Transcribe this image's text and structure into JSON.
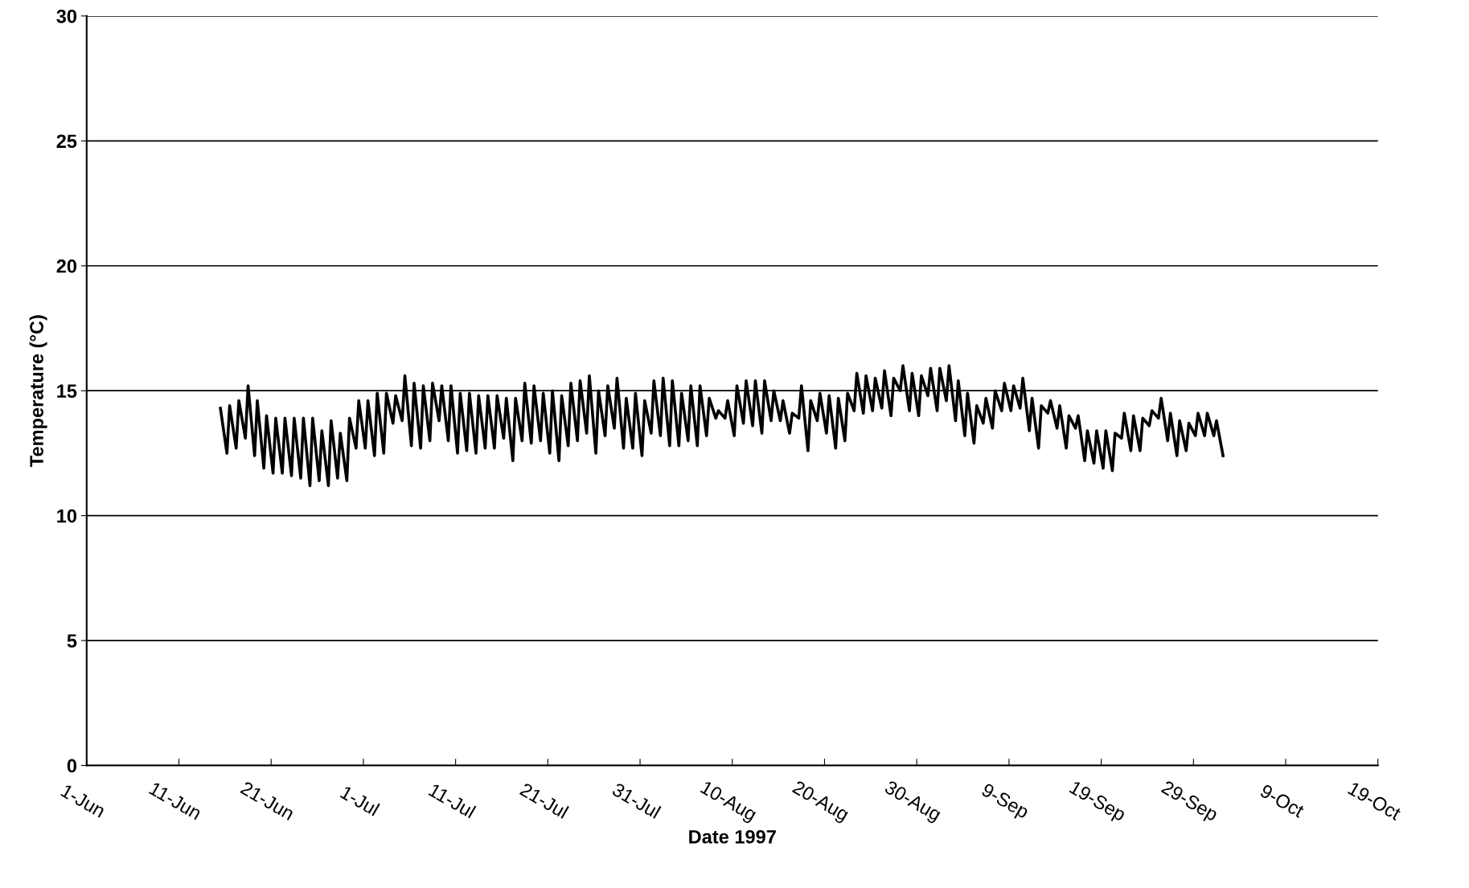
{
  "chart_data": {
    "type": "line",
    "xlabel": "Date 1997",
    "ylabel": "Temperature (°C)",
    "xlim": [
      "1997-06-01",
      "1997-10-19"
    ],
    "xticks": [
      {
        "value": "1997-06-01",
        "label": "1-Jun"
      },
      {
        "value": "1997-06-11",
        "label": "11-Jun"
      },
      {
        "value": "1997-06-21",
        "label": "21-Jun"
      },
      {
        "value": "1997-07-01",
        "label": "1-Jul"
      },
      {
        "value": "1997-07-11",
        "label": "11-Jul"
      },
      {
        "value": "1997-07-21",
        "label": "21-Jul"
      },
      {
        "value": "1997-07-31",
        "label": "31-Jul"
      },
      {
        "value": "1997-08-10",
        "label": "10-Aug"
      },
      {
        "value": "1997-08-20",
        "label": "20-Aug"
      },
      {
        "value": "1997-08-30",
        "label": "30-Aug"
      },
      {
        "value": "1997-09-09",
        "label": "9-Sep"
      },
      {
        "value": "1997-09-19",
        "label": "19-Sep"
      },
      {
        "value": "1997-09-29",
        "label": "29-Sep"
      },
      {
        "value": "1997-10-09",
        "label": "9-Oct"
      },
      {
        "value": "1997-10-19",
        "label": "19-Oct"
      }
    ],
    "ylim": [
      0,
      30
    ],
    "yticks": [
      0,
      5,
      10,
      15,
      20,
      25,
      30
    ],
    "grid": "y",
    "marker": "none",
    "line_style": "solid",
    "series": [
      {
        "color": "#000000",
        "x": [
          "1997-06-15T12:00",
          "1997-06-16T05:00",
          "1997-06-16T12:00",
          "1997-06-17T05:00",
          "1997-06-17T12:00",
          "1997-06-18T05:00",
          "1997-06-18T12:00",
          "1997-06-19T05:00",
          "1997-06-19T12:00",
          "1997-06-20T05:00",
          "1997-06-20T12:00",
          "1997-06-21T05:00",
          "1997-06-21T12:00",
          "1997-06-22T05:00",
          "1997-06-22T12:00",
          "1997-06-23T05:00",
          "1997-06-23T12:00",
          "1997-06-24T05:00",
          "1997-06-24T12:00",
          "1997-06-25T05:00",
          "1997-06-25T12:00",
          "1997-06-26T05:00",
          "1997-06-26T12:00",
          "1997-06-27T05:00",
          "1997-06-27T12:00",
          "1997-06-28T05:00",
          "1997-06-28T12:00",
          "1997-06-29T05:00",
          "1997-06-29T12:00",
          "1997-06-30T05:00",
          "1997-06-30T12:00",
          "1997-07-01T05:00",
          "1997-07-01T12:00",
          "1997-07-02T05:00",
          "1997-07-02T12:00",
          "1997-07-03T05:00",
          "1997-07-03T12:00",
          "1997-07-04T05:00",
          "1997-07-04T12:00",
          "1997-07-05T05:00",
          "1997-07-05T12:00",
          "1997-07-06T05:00",
          "1997-07-06T12:00",
          "1997-07-07T05:00",
          "1997-07-07T12:00",
          "1997-07-08T05:00",
          "1997-07-08T12:00",
          "1997-07-09T05:00",
          "1997-07-09T12:00",
          "1997-07-10T05:00",
          "1997-07-10T12:00",
          "1997-07-11T05:00",
          "1997-07-11T12:00",
          "1997-07-12T05:00",
          "1997-07-12T12:00",
          "1997-07-13T05:00",
          "1997-07-13T12:00",
          "1997-07-14T05:00",
          "1997-07-14T12:00",
          "1997-07-15T05:00",
          "1997-07-15T12:00",
          "1997-07-16T05:00",
          "1997-07-16T12:00",
          "1997-07-17T05:00",
          "1997-07-17T12:00",
          "1997-07-18T05:00",
          "1997-07-18T12:00",
          "1997-07-19T05:00",
          "1997-07-19T12:00",
          "1997-07-20T05:00",
          "1997-07-20T12:00",
          "1997-07-21T05:00",
          "1997-07-21T12:00",
          "1997-07-22T05:00",
          "1997-07-22T12:00",
          "1997-07-23T05:00",
          "1997-07-23T12:00",
          "1997-07-24T05:00",
          "1997-07-24T12:00",
          "1997-07-25T05:00",
          "1997-07-25T12:00",
          "1997-07-26T05:00",
          "1997-07-26T12:00",
          "1997-07-27T05:00",
          "1997-07-27T12:00",
          "1997-07-28T05:00",
          "1997-07-28T12:00",
          "1997-07-29T05:00",
          "1997-07-29T12:00",
          "1997-07-30T05:00",
          "1997-07-30T12:00",
          "1997-07-31T05:00",
          "1997-07-31T12:00",
          "1997-08-01T05:00",
          "1997-08-01T12:00",
          "1997-08-02T05:00",
          "1997-08-02T12:00",
          "1997-08-03T05:00",
          "1997-08-03T12:00",
          "1997-08-04T05:00",
          "1997-08-04T12:00",
          "1997-08-05T05:00",
          "1997-08-05T12:00",
          "1997-08-06T05:00",
          "1997-08-06T12:00",
          "1997-08-07T05:00",
          "1997-08-07T12:00",
          "1997-08-08T05:00",
          "1997-08-08T12:00",
          "1997-08-09T05:00",
          "1997-08-09T12:00",
          "1997-08-10T05:00",
          "1997-08-10T12:00",
          "1997-08-11T05:00",
          "1997-08-11T12:00",
          "1997-08-12T05:00",
          "1997-08-12T12:00",
          "1997-08-13T05:00",
          "1997-08-13T12:00",
          "1997-08-14T05:00",
          "1997-08-14T12:00",
          "1997-08-15T05:00",
          "1997-08-15T12:00",
          "1997-08-16T05:00",
          "1997-08-16T12:00",
          "1997-08-17T05:00",
          "1997-08-17T12:00",
          "1997-08-18T05:00",
          "1997-08-18T12:00",
          "1997-08-19T05:00",
          "1997-08-19T12:00",
          "1997-08-20T05:00",
          "1997-08-20T12:00",
          "1997-08-21T05:00",
          "1997-08-21T12:00",
          "1997-08-22T05:00",
          "1997-08-22T12:00",
          "1997-08-23T05:00",
          "1997-08-23T12:00",
          "1997-08-24T05:00",
          "1997-08-24T12:00",
          "1997-08-25T05:00",
          "1997-08-25T12:00",
          "1997-08-26T05:00",
          "1997-08-26T12:00",
          "1997-08-27T05:00",
          "1997-08-27T12:00",
          "1997-08-28T05:00",
          "1997-08-28T12:00",
          "1997-08-29T05:00",
          "1997-08-29T12:00",
          "1997-08-30T05:00",
          "1997-08-30T12:00",
          "1997-08-31T05:00",
          "1997-08-31T12:00",
          "1997-09-01T05:00",
          "1997-09-01T12:00",
          "1997-09-02T05:00",
          "1997-09-02T12:00",
          "1997-09-03T05:00",
          "1997-09-03T12:00",
          "1997-09-04T05:00",
          "1997-09-04T12:00",
          "1997-09-05T05:00",
          "1997-09-05T12:00",
          "1997-09-06T05:00",
          "1997-09-06T12:00",
          "1997-09-07T05:00",
          "1997-09-07T12:00",
          "1997-09-08T05:00",
          "1997-09-08T12:00",
          "1997-09-09T05:00",
          "1997-09-09T12:00",
          "1997-09-10T05:00",
          "1997-09-10T12:00",
          "1997-09-11T05:00",
          "1997-09-11T12:00",
          "1997-09-12T05:00",
          "1997-09-12T12:00",
          "1997-09-13T05:00",
          "1997-09-13T12:00",
          "1997-09-14T05:00",
          "1997-09-14T12:00",
          "1997-09-15T05:00",
          "1997-09-15T12:00",
          "1997-09-16T05:00",
          "1997-09-16T12:00",
          "1997-09-17T05:00",
          "1997-09-17T12:00",
          "1997-09-18T05:00",
          "1997-09-18T12:00",
          "1997-09-19T05:00",
          "1997-09-19T12:00",
          "1997-09-20T05:00",
          "1997-09-20T12:00",
          "1997-09-21T05:00",
          "1997-09-21T12:00",
          "1997-09-22T05:00",
          "1997-09-22T12:00",
          "1997-09-23T05:00",
          "1997-09-23T12:00",
          "1997-09-24T05:00",
          "1997-09-24T12:00",
          "1997-09-25T05:00",
          "1997-09-25T12:00",
          "1997-09-26T05:00",
          "1997-09-26T12:00",
          "1997-09-27T05:00",
          "1997-09-27T12:00",
          "1997-09-28T05:00",
          "1997-09-28T12:00",
          "1997-09-29T05:00",
          "1997-09-29T12:00",
          "1997-09-30T05:00",
          "1997-09-30T12:00",
          "1997-10-01T05:00",
          "1997-10-01T12:00",
          "1997-10-02T05:00"
        ],
        "values": [
          14.3,
          12.5,
          14.4,
          12.7,
          14.6,
          13.1,
          15.2,
          12.4,
          14.6,
          11.9,
          14.0,
          11.7,
          13.9,
          11.7,
          13.9,
          11.6,
          13.9,
          11.5,
          13.9,
          11.2,
          13.9,
          11.4,
          13.4,
          11.2,
          13.8,
          11.5,
          13.3,
          11.4,
          13.9,
          12.7,
          14.6,
          12.7,
          14.6,
          12.4,
          14.9,
          12.5,
          14.9,
          13.7,
          14.8,
          13.8,
          15.6,
          12.8,
          15.3,
          12.7,
          15.2,
          13.0,
          15.3,
          13.8,
          15.2,
          13.0,
          15.2,
          12.5,
          14.9,
          12.6,
          14.9,
          12.5,
          14.8,
          12.7,
          14.8,
          12.7,
          14.8,
          13.1,
          14.7,
          12.2,
          14.7,
          13.0,
          15.3,
          12.9,
          15.2,
          13.0,
          14.9,
          12.5,
          15.0,
          12.2,
          14.8,
          12.8,
          15.3,
          13.0,
          15.4,
          13.3,
          15.6,
          12.5,
          15.0,
          13.2,
          15.2,
          13.5,
          15.5,
          12.7,
          14.7,
          12.7,
          14.9,
          12.4,
          14.6,
          13.3,
          15.4,
          13.2,
          15.5,
          12.8,
          15.4,
          12.8,
          14.9,
          13.0,
          15.2,
          12.8,
          15.2,
          13.2,
          14.7,
          13.9,
          14.2,
          13.9,
          14.6,
          13.2,
          15.2,
          13.7,
          15.4,
          13.6,
          15.4,
          13.3,
          15.4,
          13.8,
          15.0,
          13.8,
          14.6,
          13.3,
          14.1,
          13.9,
          15.2,
          12.6,
          14.6,
          13.8,
          14.9,
          13.3,
          14.8,
          12.7,
          14.7,
          13.0,
          14.9,
          14.2,
          15.7,
          14.1,
          15.6,
          14.2,
          15.5,
          14.3,
          15.8,
          14.0,
          15.5,
          15.0,
          16.0,
          14.2,
          15.7,
          14.0,
          15.6,
          14.8,
          15.9,
          14.2,
          15.9,
          14.6,
          16.0,
          13.8,
          15.4,
          13.2,
          14.9,
          12.9,
          14.4,
          13.7,
          14.7,
          13.5,
          15.0,
          14.2,
          15.3,
          14.2,
          15.2,
          14.3,
          15.5,
          13.4,
          14.7,
          12.7,
          14.4,
          14.1,
          14.6,
          13.5,
          14.4,
          12.7,
          14.0,
          13.5,
          14.0,
          12.2,
          13.4,
          12.1,
          13.4,
          11.9,
          13.4,
          11.8,
          13.3,
          13.1,
          14.1,
          12.6,
          14.0,
          12.6,
          13.9,
          13.6,
          14.2,
          13.9,
          14.7,
          13.0,
          14.1,
          12.4,
          13.8,
          12.6,
          13.7,
          13.2,
          14.1,
          13.2,
          14.1,
          13.2,
          13.8,
          12.4
        ]
      }
    ]
  }
}
